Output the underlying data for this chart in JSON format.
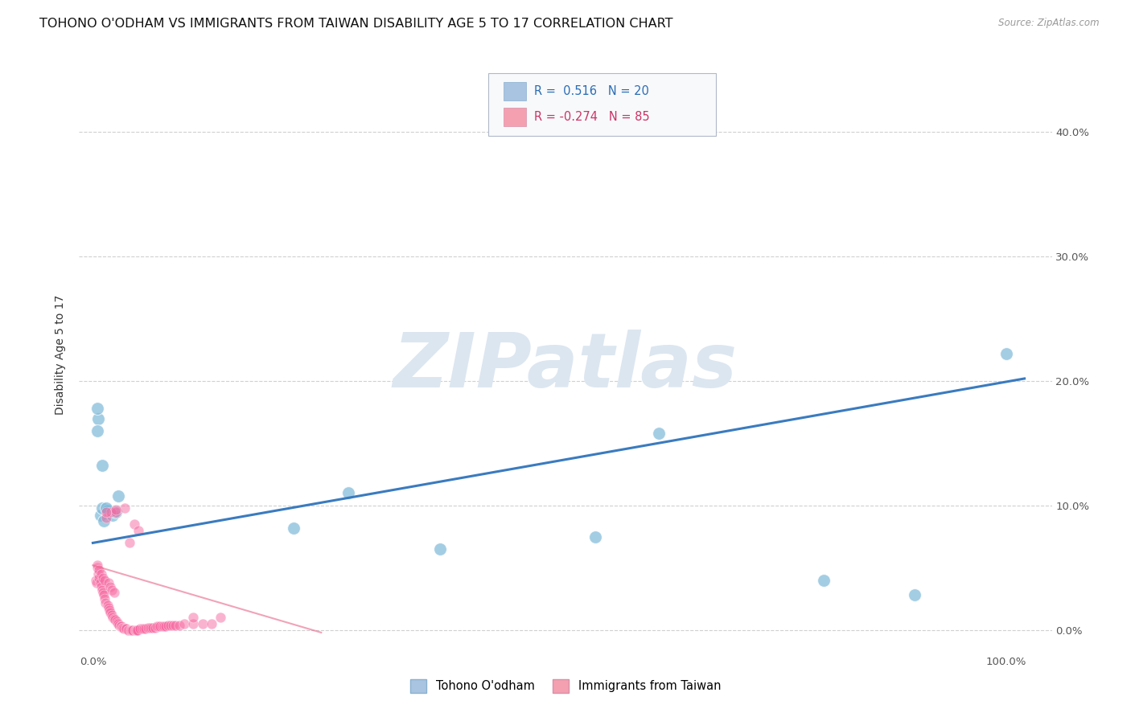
{
  "title": "TOHONO O'ODHAM VS IMMIGRANTS FROM TAIWAN DISABILITY AGE 5 TO 17 CORRELATION CHART",
  "source": "Source: ZipAtlas.com",
  "ylabel": "Disability Age 5 to 17",
  "xlim": [
    -0.015,
    1.05
  ],
  "ylim": [
    -0.018,
    0.46
  ],
  "yticks": [
    0.0,
    0.1,
    0.2,
    0.3,
    0.4
  ],
  "yticklabels": [
    "",
    "",
    "",
    "",
    ""
  ],
  "yticklabels_right": [
    "0.0%",
    "10.0%",
    "20.0%",
    "30.0%",
    "40.0%"
  ],
  "xtick_positions": [
    0.0,
    1.0
  ],
  "xticklabels": [
    "0.0%",
    "100.0%"
  ],
  "legend_color1": "#a8c4e0",
  "legend_color2": "#f4a0b0",
  "blue_color": "#7db8d8",
  "pink_color": "#f768a1",
  "blue_line_color": "#3a7bbf",
  "pink_line_color": "#e8668a",
  "watermark": "ZIPatlas",
  "watermark_color": "#dce6f0",
  "blue_dots_x": [
    0.008,
    0.012,
    0.01,
    0.006,
    0.016,
    0.022,
    0.015,
    0.005,
    0.028,
    0.22,
    0.28,
    0.55,
    0.8,
    1.0,
    0.005,
    0.01,
    0.38,
    0.9,
    0.62,
    0.025
  ],
  "blue_dots_y": [
    0.092,
    0.088,
    0.098,
    0.17,
    0.096,
    0.092,
    0.098,
    0.16,
    0.108,
    0.082,
    0.11,
    0.075,
    0.04,
    0.222,
    0.178,
    0.132,
    0.065,
    0.028,
    0.158,
    0.095
  ],
  "pink_dots_x": [
    0.003,
    0.004,
    0.005,
    0.006,
    0.007,
    0.008,
    0.009,
    0.01,
    0.011,
    0.012,
    0.013,
    0.014,
    0.015,
    0.016,
    0.017,
    0.018,
    0.019,
    0.02,
    0.021,
    0.022,
    0.023,
    0.024,
    0.025,
    0.026,
    0.027,
    0.028,
    0.029,
    0.03,
    0.031,
    0.032,
    0.033,
    0.034,
    0.035,
    0.036,
    0.037,
    0.038,
    0.039,
    0.04,
    0.041,
    0.042,
    0.043,
    0.044,
    0.045,
    0.046,
    0.047,
    0.048,
    0.049,
    0.05,
    0.052,
    0.054,
    0.056,
    0.058,
    0.06,
    0.062,
    0.064,
    0.066,
    0.068,
    0.07,
    0.072,
    0.074,
    0.076,
    0.078,
    0.08,
    0.082,
    0.085,
    0.088,
    0.09,
    0.095,
    0.1,
    0.11,
    0.12,
    0.13,
    0.14,
    0.005,
    0.007,
    0.009,
    0.011,
    0.013,
    0.015,
    0.017,
    0.019,
    0.021,
    0.023,
    0.025,
    0.11
  ],
  "pink_dots_y": [
    0.04,
    0.038,
    0.05,
    0.045,
    0.042,
    0.038,
    0.035,
    0.032,
    0.03,
    0.028,
    0.025,
    0.022,
    0.09,
    0.02,
    0.018,
    0.016,
    0.014,
    0.095,
    0.012,
    0.01,
    0.009,
    0.008,
    0.095,
    0.007,
    0.006,
    0.005,
    0.004,
    0.003,
    0.003,
    0.002,
    0.002,
    0.001,
    0.098,
    0.001,
    0.001,
    0.0,
    0.0,
    0.07,
    0.0,
    0.0,
    0.0,
    0.0,
    0.085,
    0.0,
    0.0,
    0.0,
    0.0,
    0.08,
    0.001,
    0.001,
    0.001,
    0.001,
    0.002,
    0.002,
    0.002,
    0.002,
    0.002,
    0.003,
    0.003,
    0.003,
    0.003,
    0.003,
    0.003,
    0.004,
    0.004,
    0.004,
    0.004,
    0.004,
    0.005,
    0.005,
    0.005,
    0.005,
    0.01,
    0.052,
    0.048,
    0.045,
    0.042,
    0.04,
    0.095,
    0.038,
    0.035,
    0.032,
    0.03,
    0.097,
    0.01
  ],
  "blue_dot_size": 130,
  "pink_dot_size": 85,
  "background_color": "#ffffff",
  "grid_color": "#d0d0d0",
  "title_fontsize": 11.5,
  "axis_label_fontsize": 10,
  "tick_fontsize": 9.5
}
